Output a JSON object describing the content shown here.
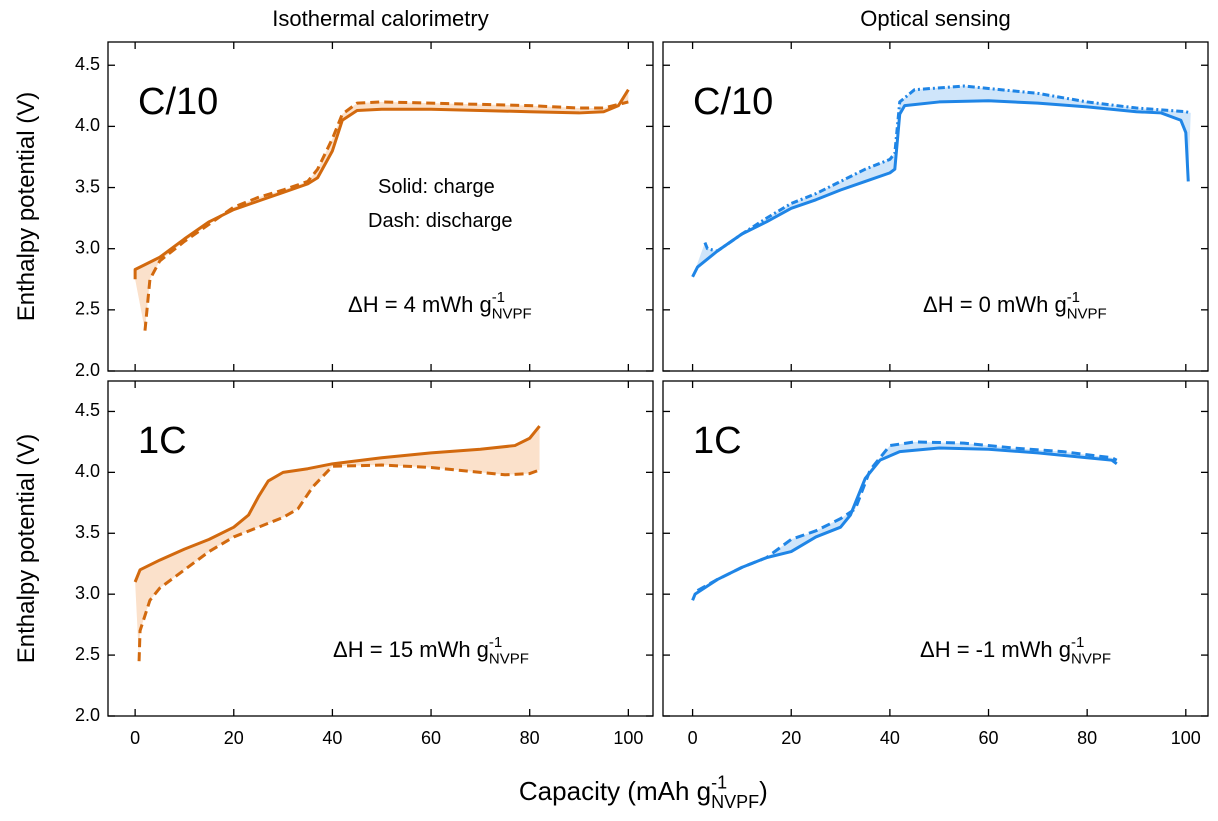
{
  "column_titles": [
    {
      "text": "Isothermal calorimetry",
      "color": "#e07b27"
    },
    {
      "text": "Optical sensing",
      "color": "#2a8be6"
    }
  ],
  "x_label": {
    "text": "Capacity (mAh g",
    "sup": "-1",
    "sub": "NVPF",
    "tail": ")"
  },
  "chart_data": [
    {
      "type": "line",
      "panel_label": "C/10",
      "ylabel": "Enthalpy potential (V)",
      "annotations": [
        "Solid: charge",
        "Dash: discharge"
      ],
      "delta_h": {
        "text": "ΔH = 4 mWh g",
        "sup": "-1",
        "sub": "NVPF",
        "color": "#e07b27"
      },
      "fill_color": "#fbe1cb",
      "xlim": [
        -5.5,
        105
      ],
      "ylim": [
        2.0,
        4.69
      ],
      "xticks": [
        0,
        20,
        40,
        60,
        80,
        100
      ],
      "yticks": [
        {
          "value": 2,
          "label": "2.0"
        },
        2.5,
        {
          "value": 3,
          "label": "3.0"
        },
        3.5,
        {
          "value": 4,
          "label": "4.0"
        },
        4.5
      ],
      "show_xtick_labels": false,
      "series": [
        {
          "color": "#d2690e",
          "line_style": "solid",
          "x": [
            0,
            0,
            2,
            5,
            10,
            15,
            20,
            25,
            30,
            35,
            37,
            40,
            42,
            45,
            50,
            60,
            70,
            80,
            90,
            95,
            98,
            100
          ],
          "values": [
            2.75,
            2.83,
            2.87,
            2.93,
            3.08,
            3.22,
            3.32,
            3.39,
            3.46,
            3.53,
            3.58,
            3.8,
            4.05,
            4.13,
            4.14,
            4.14,
            4.13,
            4.12,
            4.11,
            4.12,
            4.17,
            4.3
          ]
        },
        {
          "color": "#d2690e",
          "line_style": "dashed",
          "x": [
            2,
            3,
            5,
            10,
            15,
            20,
            25,
            30,
            35,
            37,
            40,
            42,
            45,
            50,
            60,
            70,
            80,
            90,
            95,
            100
          ],
          "values": [
            2.33,
            2.75,
            2.9,
            3.06,
            3.2,
            3.34,
            3.42,
            3.48,
            3.55,
            3.65,
            3.9,
            4.1,
            4.19,
            4.2,
            4.19,
            4.18,
            4.17,
            4.15,
            4.15,
            4.2
          ]
        }
      ]
    },
    {
      "type": "line",
      "panel_label": "C/10",
      "delta_h": {
        "text": "ΔH = 0 mWh g",
        "sup": "-1",
        "sub": "NVPF",
        "color": "#2a8be6"
      },
      "fill_color": "#cfe5fa",
      "xlim": [
        -6,
        104.5
      ],
      "ylim": [
        2.0,
        4.69
      ],
      "xticks": [
        0,
        20,
        40,
        60,
        80,
        100
      ],
      "yticks": [
        {
          "value": 2,
          "label": "2.0"
        },
        2.5,
        {
          "value": 3,
          "label": "3.0"
        },
        3.5,
        {
          "value": 4,
          "label": "4.0"
        },
        4.5
      ],
      "show_xtick_labels": false,
      "series": [
        {
          "color": "#1f85e6",
          "line_style": "solid",
          "x": [
            0,
            1,
            5,
            10,
            15,
            20,
            25,
            30,
            35,
            40,
            41,
            42,
            43,
            50,
            60,
            70,
            80,
            90,
            95,
            99,
            100,
            100.5
          ],
          "values": [
            2.77,
            2.85,
            2.98,
            3.12,
            3.22,
            3.33,
            3.4,
            3.48,
            3.55,
            3.62,
            3.65,
            4.1,
            4.17,
            4.2,
            4.21,
            4.19,
            4.16,
            4.12,
            4.11,
            4.05,
            3.95,
            3.55
          ]
        },
        {
          "color": "#1f85e6",
          "line_style": "dashdot",
          "x": [
            2.5,
            3,
            5,
            10,
            15,
            20,
            25,
            30,
            35,
            40,
            41,
            42,
            45,
            55,
            60,
            70,
            80,
            90,
            100,
            101
          ],
          "values": [
            3.05,
            3.0,
            2.98,
            3.12,
            3.25,
            3.37,
            3.45,
            3.55,
            3.65,
            3.73,
            3.78,
            4.2,
            4.3,
            4.33,
            4.31,
            4.27,
            4.2,
            4.15,
            4.12,
            4.11
          ]
        }
      ]
    },
    {
      "type": "line",
      "panel_label": "1C",
      "ylabel": "Enthalpy potential (V)",
      "delta_h": {
        "text": "ΔH = 15 mWh g",
        "sup": "-1",
        "sub": "NVPF",
        "color": "#e07b27"
      },
      "fill_color": "#fbe1cb",
      "xlim": [
        -5.5,
        105
      ],
      "ylim": [
        2.0,
        4.75
      ],
      "xticks": [
        0,
        20,
        40,
        60,
        80,
        100
      ],
      "yticks": [
        {
          "value": 2,
          "label": "2.0"
        },
        2.5,
        {
          "value": 3,
          "label": "3.0"
        },
        3.5,
        {
          "value": 4,
          "label": "4.0"
        },
        4.5
      ],
      "show_xtick_labels": true,
      "series": [
        {
          "color": "#d2690e",
          "line_style": "solid",
          "x": [
            0,
            1,
            5,
            10,
            15,
            20,
            23,
            25,
            27,
            30,
            35,
            40,
            50,
            60,
            70,
            77,
            80,
            82
          ],
          "values": [
            3.1,
            3.2,
            3.28,
            3.37,
            3.45,
            3.55,
            3.65,
            3.8,
            3.93,
            4.0,
            4.03,
            4.07,
            4.12,
            4.16,
            4.19,
            4.22,
            4.28,
            4.38
          ]
        },
        {
          "color": "#d2690e",
          "line_style": "dashed",
          "x": [
            0.8,
            1,
            3,
            5,
            10,
            15,
            20,
            25,
            30,
            33,
            36,
            40,
            50,
            60,
            70,
            75,
            80,
            82
          ],
          "values": [
            2.45,
            2.7,
            2.95,
            3.05,
            3.2,
            3.35,
            3.47,
            3.55,
            3.63,
            3.7,
            3.88,
            4.05,
            4.06,
            4.04,
            4.0,
            3.98,
            3.99,
            4.02
          ]
        }
      ]
    },
    {
      "type": "line",
      "panel_label": "1C",
      "delta_h": {
        "text": "ΔH = -1 mWh g",
        "sup": "-1",
        "sub": "NVPF",
        "color": "#2a8be6"
      },
      "fill_color": "#cfe5fa",
      "xlim": [
        -6,
        104.5
      ],
      "ylim": [
        2.0,
        4.75
      ],
      "xticks": [
        0,
        20,
        40,
        60,
        80,
        100
      ],
      "yticks": [
        {
          "value": 2,
          "label": "2.0"
        },
        2.5,
        {
          "value": 3,
          "label": "3.0"
        },
        3.5,
        {
          "value": 4,
          "label": "4.0"
        },
        4.5
      ],
      "show_xtick_labels": true,
      "series": [
        {
          "color": "#1f85e6",
          "line_style": "solid",
          "x": [
            0,
            0.5,
            5,
            10,
            15,
            20,
            25,
            30,
            32,
            35,
            38,
            42,
            50,
            60,
            70,
            80,
            85,
            86
          ],
          "values": [
            2.95,
            3.0,
            3.12,
            3.22,
            3.3,
            3.35,
            3.47,
            3.55,
            3.65,
            3.95,
            4.1,
            4.17,
            4.2,
            4.19,
            4.16,
            4.12,
            4.1,
            4.07
          ]
        },
        {
          "color": "#1f85e6",
          "line_style": "dashed",
          "x": [
            1,
            5,
            10,
            15,
            20,
            25,
            30,
            33,
            36,
            40,
            45,
            55,
            65,
            75,
            85,
            86
          ],
          "values": [
            3.03,
            3.12,
            3.22,
            3.3,
            3.45,
            3.52,
            3.62,
            3.7,
            4.02,
            4.22,
            4.25,
            4.24,
            4.2,
            4.17,
            4.12,
            4.1
          ]
        }
      ]
    }
  ]
}
